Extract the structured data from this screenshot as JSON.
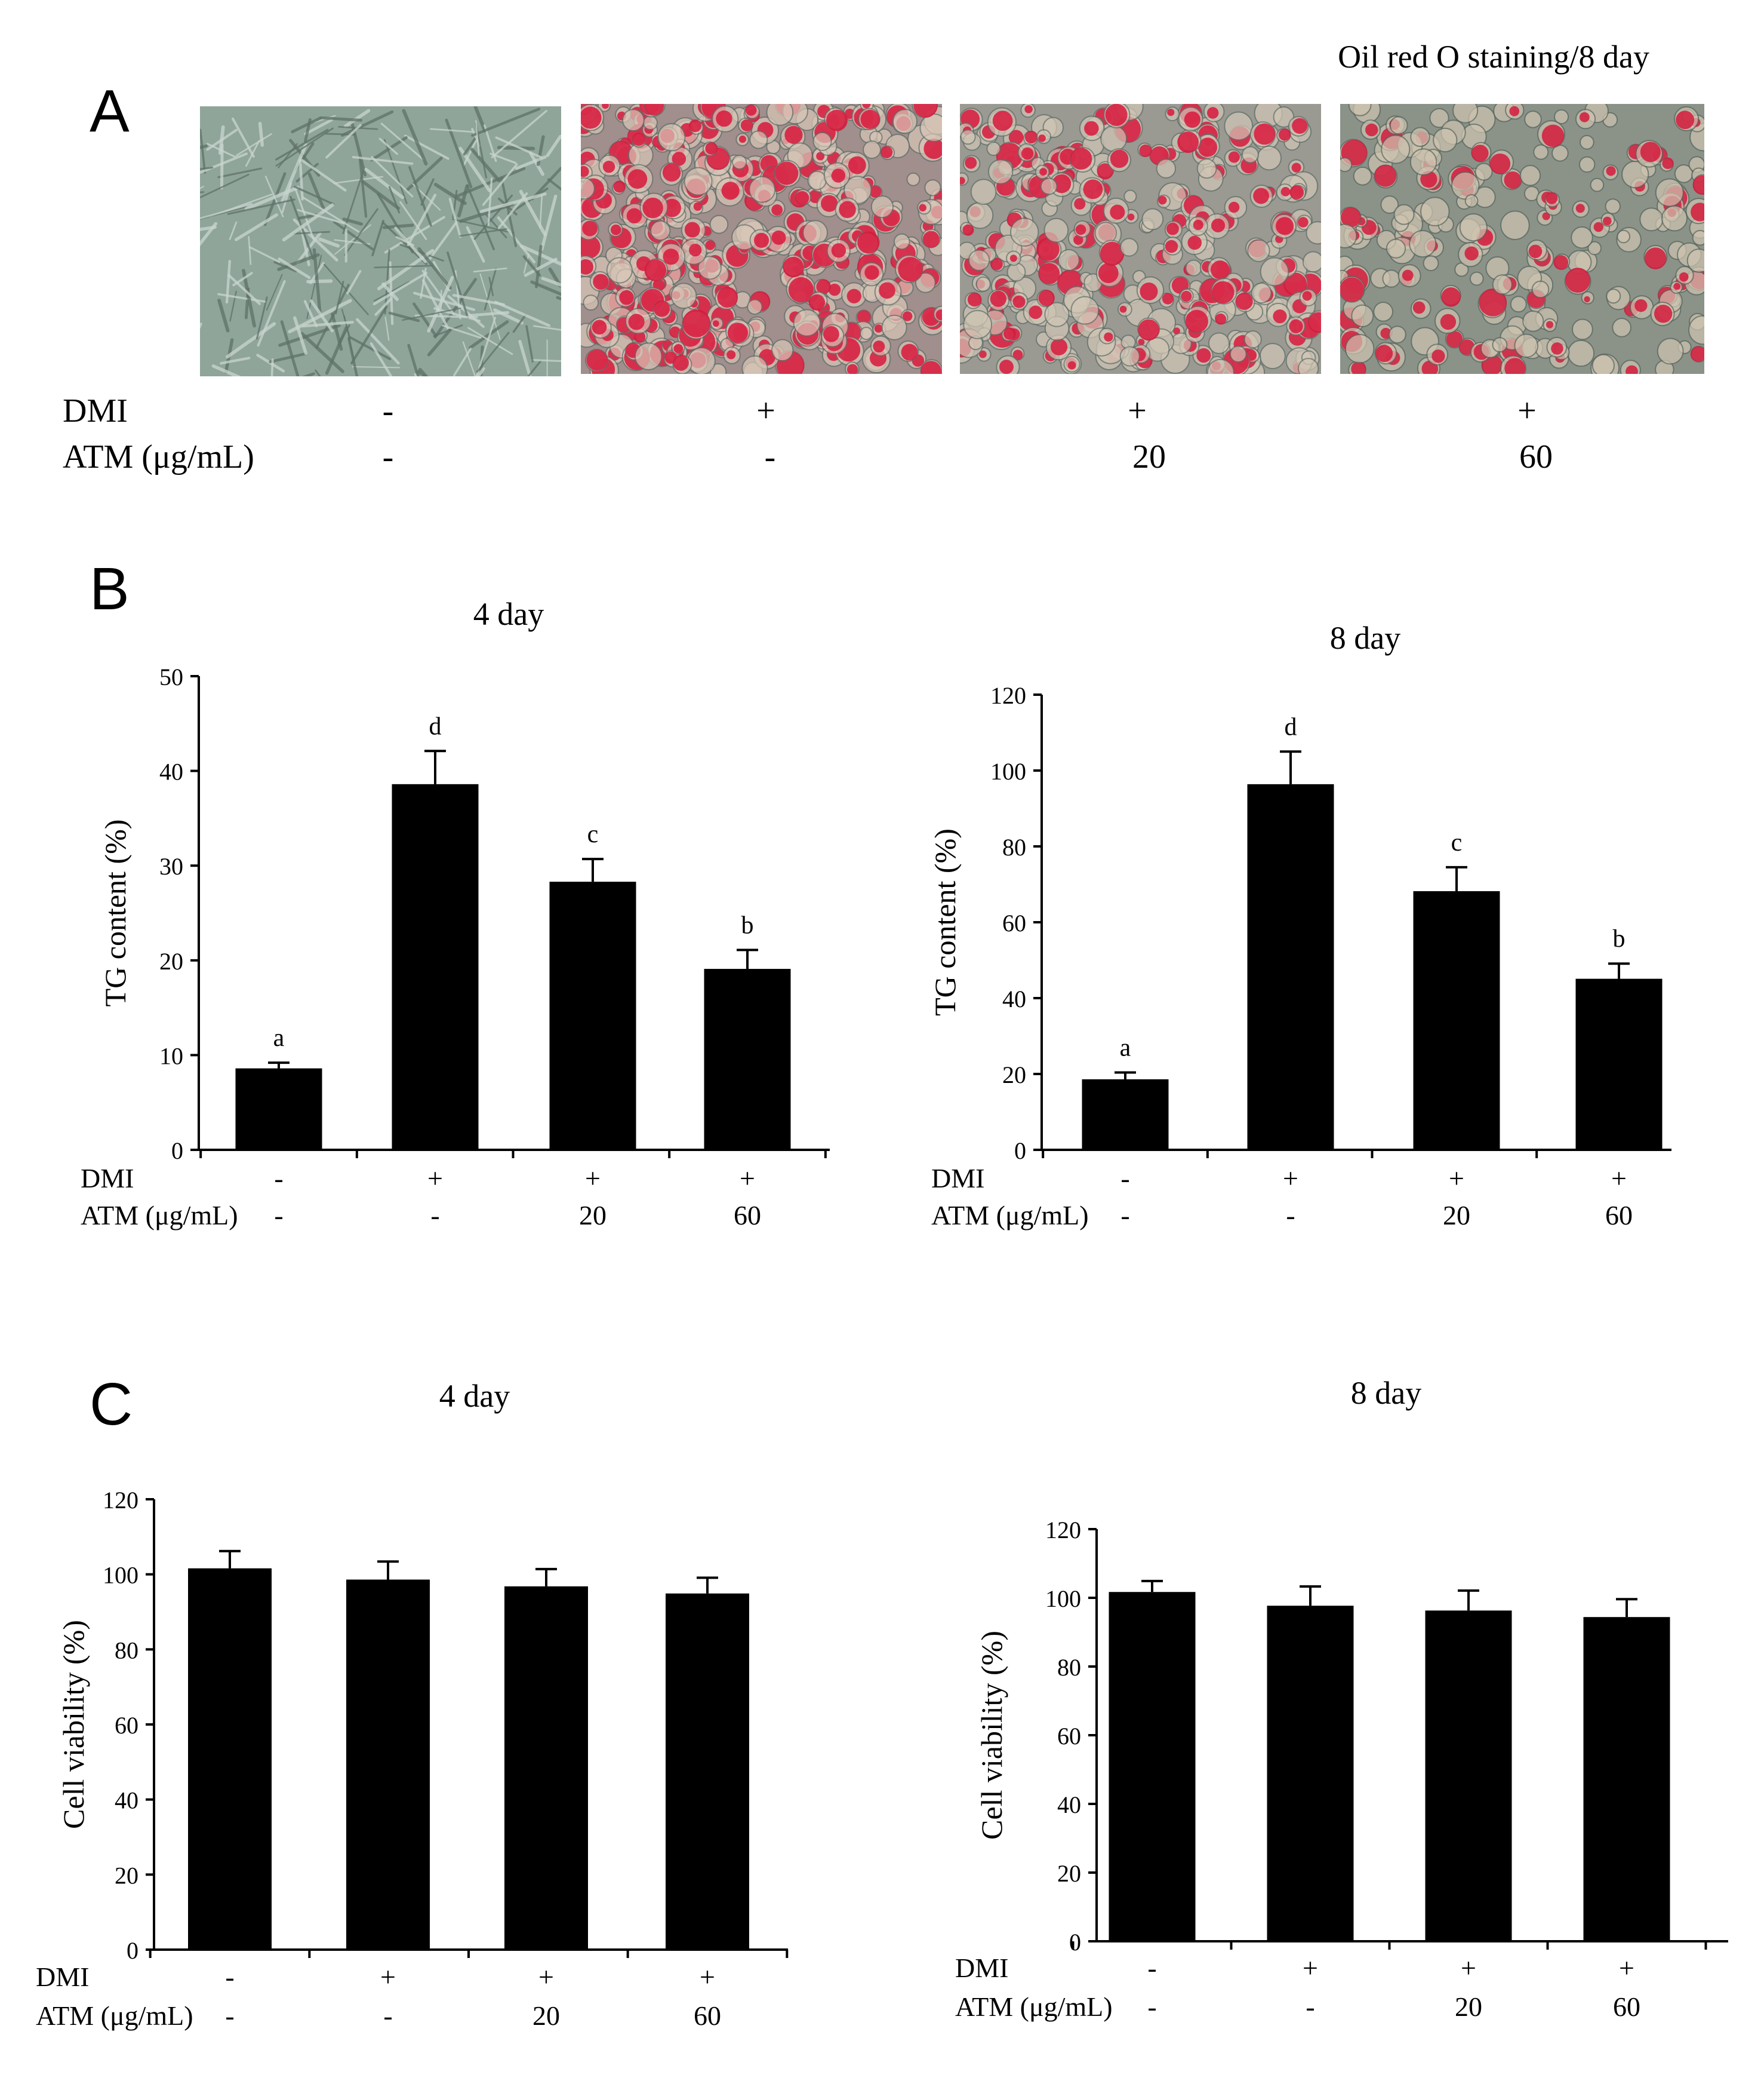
{
  "panels": {
    "A": {
      "letter": "A",
      "title": "Oil red O staining/8 day",
      "row_labels": [
        "DMI",
        "ATM (μg/mL)"
      ],
      "images": [
        {
          "dmi": "-",
          "atm": "-",
          "style": "undifferentiated",
          "colors": {
            "bg": "#8fa59a",
            "cell": "#c9d6cf",
            "line": "#5e7268"
          }
        },
        {
          "dmi": "+",
          "atm": "-",
          "style": "stained-dense",
          "colors": {
            "bg": "#a08f8c",
            "cell": "#d9c7b8",
            "line": "#5f6f6a",
            "stain": "#d8173c"
          }
        },
        {
          "dmi": "+",
          "atm": "20",
          "style": "stained-medium",
          "colors": {
            "bg": "#9a9a92",
            "cell": "#d2c7b6",
            "line": "#5f6f6a",
            "stain": "#d8173c"
          }
        },
        {
          "dmi": "+",
          "atm": "60",
          "style": "stained-sparse",
          "colors": {
            "bg": "#8b9389",
            "cell": "#cfc4b0",
            "line": "#58665f",
            "stain": "#d31a3c"
          }
        }
      ]
    },
    "B": {
      "letter": "B"
    },
    "C": {
      "letter": "C"
    }
  },
  "chart_data": [
    {
      "id": "B-4day",
      "panel": "B",
      "type": "bar",
      "title": "4 day",
      "xlabel": "",
      "ylabel": "TG content (%)",
      "ylim": [
        0,
        50
      ],
      "yticks": [
        0,
        10,
        20,
        30,
        40,
        50
      ],
      "grid": false,
      "bar_color": "#000000",
      "row_labels": [
        "DMI",
        "ATM (μg/mL)"
      ],
      "categories": [
        {
          "dmi": "-",
          "atm": "-"
        },
        {
          "dmi": "+",
          "atm": "-"
        },
        {
          "dmi": "+",
          "atm": "20"
        },
        {
          "dmi": "+",
          "atm": "60"
        }
      ],
      "values": [
        8.6,
        38.6,
        28.3,
        19.1
      ],
      "errors": [
        0.6,
        3.5,
        2.4,
        2.0
      ],
      "sig_letters": [
        "a",
        "d",
        "c",
        "b"
      ]
    },
    {
      "id": "B-8day",
      "panel": "B",
      "type": "bar",
      "title": "8 day",
      "xlabel": "",
      "ylabel": "TG content (%)",
      "ylim": [
        0,
        120
      ],
      "yticks": [
        0,
        20,
        40,
        60,
        80,
        100,
        120
      ],
      "grid": false,
      "bar_color": "#000000",
      "row_labels": [
        "DMI",
        "ATM (μg/mL)"
      ],
      "categories": [
        {
          "dmi": "-",
          "atm": "-"
        },
        {
          "dmi": "+",
          "atm": "-"
        },
        {
          "dmi": "+",
          "atm": "20"
        },
        {
          "dmi": "+",
          "atm": "60"
        }
      ],
      "values": [
        18.6,
        96.4,
        68.2,
        45.1
      ],
      "errors": [
        1.8,
        8.6,
        6.3,
        4.0
      ],
      "sig_letters": [
        "a",
        "d",
        "c",
        "b"
      ]
    },
    {
      "id": "C-4day",
      "panel": "C",
      "type": "bar",
      "title": "4 day",
      "xlabel": "",
      "ylabel": "Cell viability (%)",
      "ylim": [
        0,
        120
      ],
      "yticks": [
        0,
        20,
        40,
        60,
        80,
        100,
        120
      ],
      "grid": false,
      "bar_color": "#000000",
      "row_labels": [
        "DMI",
        "ATM (μg/mL)"
      ],
      "categories": [
        {
          "dmi": "-",
          "atm": "-"
        },
        {
          "dmi": "+",
          "atm": "-"
        },
        {
          "dmi": "+",
          "atm": "20"
        },
        {
          "dmi": "+",
          "atm": "60"
        }
      ],
      "values": [
        101.6,
        98.6,
        96.8,
        94.9
      ],
      "errors": [
        4.6,
        4.8,
        4.6,
        4.2
      ],
      "sig_letters": []
    },
    {
      "id": "C-8day",
      "panel": "C",
      "type": "bar",
      "title": "8 day",
      "xlabel": "",
      "ylabel": "Cell viability (%)",
      "ylim": [
        0,
        120
      ],
      "yticks": [
        0,
        20,
        40,
        60,
        80,
        100,
        120
      ],
      "grid": false,
      "bar_color": "#000000",
      "row_labels": [
        "DMI",
        "ATM (μg/mL)"
      ],
      "categories": [
        {
          "dmi": "-",
          "atm": "-"
        },
        {
          "dmi": "+",
          "atm": "-"
        },
        {
          "dmi": "+",
          "atm": "20"
        },
        {
          "dmi": "+",
          "atm": "60"
        }
      ],
      "values": [
        101.7,
        97.7,
        96.3,
        94.4
      ],
      "errors": [
        3.2,
        5.6,
        5.8,
        5.2
      ],
      "sig_letters": []
    }
  ]
}
